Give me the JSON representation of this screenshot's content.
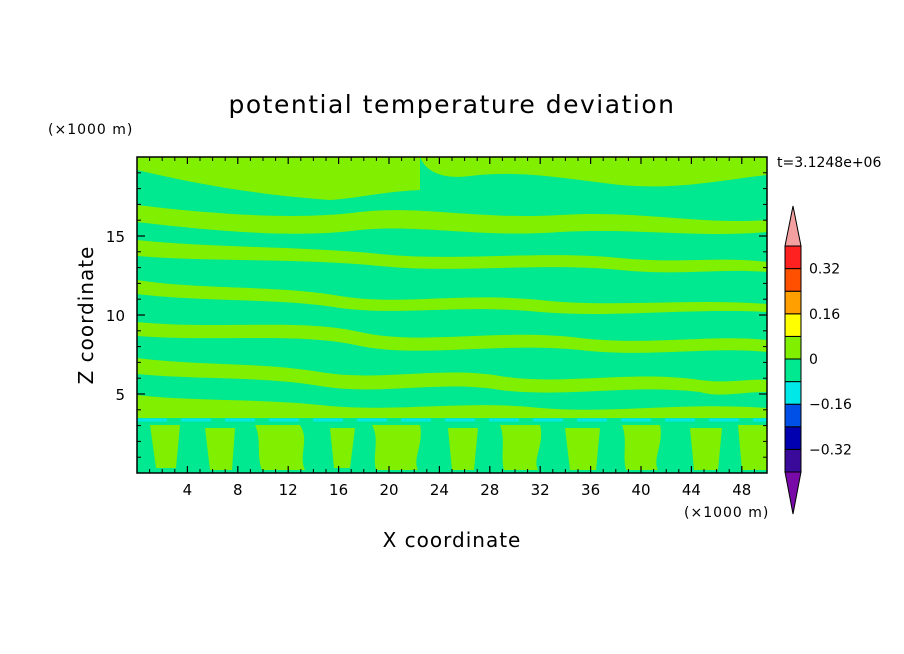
{
  "chart_data": {
    "type": "heatmap",
    "title": "potential temperature deviation",
    "xlabel": "X coordinate",
    "ylabel": "Z coordinate",
    "x_unit": "(×1000 m)",
    "y_unit": "(×1000 m)",
    "time_label": "t=3.1248e+06",
    "xlim": [
      0,
      50
    ],
    "ylim": [
      0,
      20
    ],
    "x_ticks": [
      4,
      8,
      12,
      16,
      20,
      24,
      28,
      32,
      36,
      40,
      44,
      48
    ],
    "y_ticks": [
      5,
      10,
      15
    ],
    "colorbar": {
      "levels": [
        {
          "color": "#7a0aa8"
        },
        {
          "color": "#3a0a9a"
        },
        {
          "color": "#0000b0"
        },
        {
          "color": "#0050e8"
        },
        {
          "color": "#00e8e8"
        },
        {
          "color": "#00e890"
        },
        {
          "color": "#80f000"
        },
        {
          "color": "#ffff00"
        },
        {
          "color": "#ffa000"
        },
        {
          "color": "#ff5000"
        },
        {
          "color": "#ff2020"
        },
        {
          "color": "#f4a0a0"
        }
      ],
      "tick_labels": [
        {
          "value": 0.32,
          "label": "0.32"
        },
        {
          "value": 0.16,
          "label": "0.16"
        },
        {
          "value": 0,
          "label": "0"
        },
        {
          "value": -0.16,
          "label": "−0.16"
        },
        {
          "value": -0.32,
          "label": "−0.32"
        }
      ]
    },
    "background_color": "#00e890",
    "anomaly_color": "#80f000"
  }
}
